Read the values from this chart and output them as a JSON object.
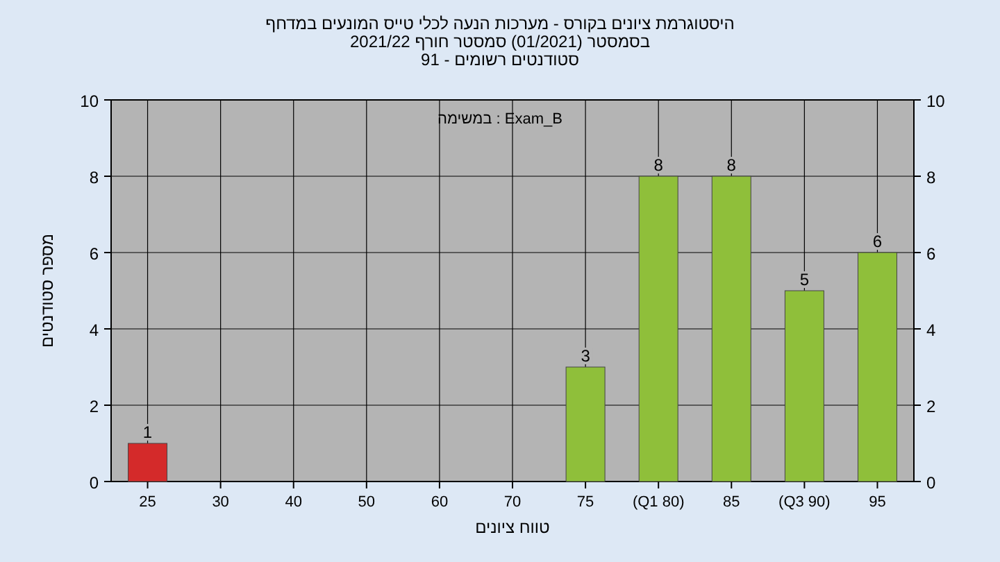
{
  "chart_data": {
    "type": "bar",
    "title": "היסטוגרמת ציונים בקורס - מערכות הנעה לכלי טייס המונעים במדחף",
    "subtitle": "בסמסטר (01/2021) סמסטר חורף 2021/22",
    "annotations": [
      "סטודנטים רשומים - 91",
      "Exam_B : במשימה"
    ],
    "xlabel": "טווח ציונים",
    "ylabel": "מספר סטודנטים",
    "categories": [
      "25",
      "30",
      "40",
      "50",
      "60",
      "70",
      "75",
      "(Q1 80)",
      "85",
      "(Q3 90)",
      "95"
    ],
    "values": [
      1,
      0,
      0,
      0,
      0,
      0,
      3,
      8,
      8,
      5,
      6
    ],
    "colors": [
      "#d42a2a",
      "#8fbf3a",
      "#8fbf3a",
      "#8fbf3a",
      "#8fbf3a",
      "#8fbf3a",
      "#8fbf3a",
      "#8fbf3a",
      "#8fbf3a",
      "#8fbf3a",
      "#8fbf3a"
    ],
    "value_labels": [
      "1",
      null,
      null,
      null,
      null,
      null,
      "3",
      "8",
      "8",
      "5",
      "6"
    ],
    "ylim": [
      0,
      10
    ],
    "yticks": [
      0,
      2,
      4,
      6,
      8,
      10
    ],
    "y2lim": [
      0,
      10
    ],
    "y2ticks": [
      0,
      2,
      4,
      6,
      8,
      10
    ],
    "grid": true,
    "legend": false
  }
}
